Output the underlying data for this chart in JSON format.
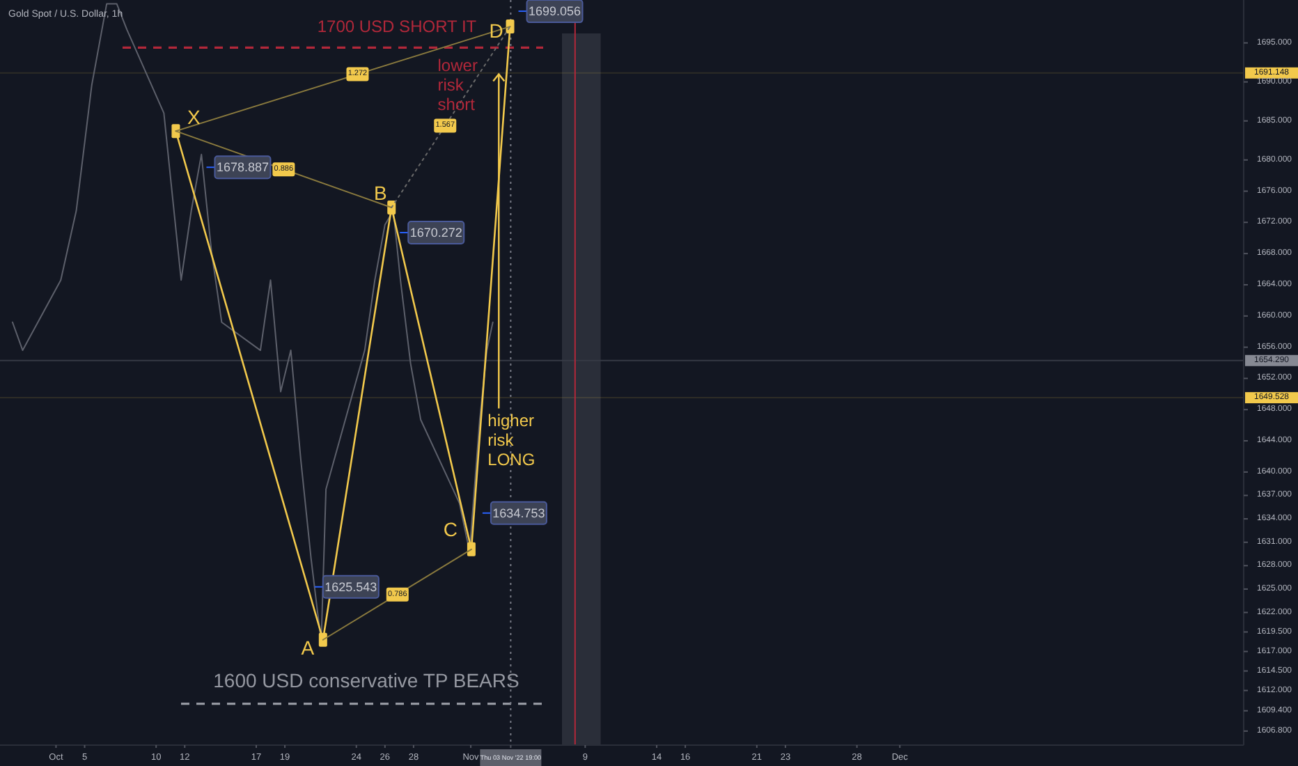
{
  "chart_data": {
    "type": "line",
    "title": "Gold Spot / U.S. Dollar, 1h",
    "xlim": [
      "2022-09-29T02:00",
      "2022-12-25T01:00"
    ],
    "ylim": [
      1605,
      1700.5
    ],
    "xticks": [
      {
        "value": "2022-10-03",
        "label": "Oct"
      },
      {
        "value": "2022-10-05",
        "label": "5"
      },
      {
        "value": "2022-10-10",
        "label": "10"
      },
      {
        "value": "2022-10-12",
        "label": "12"
      },
      {
        "value": "2022-10-17",
        "label": "17"
      },
      {
        "value": "2022-10-19",
        "label": "19"
      },
      {
        "value": "2022-10-24",
        "label": "24"
      },
      {
        "value": "2022-10-26",
        "label": "26"
      },
      {
        "value": "2022-10-28",
        "label": "28"
      },
      {
        "value": "2022-11-01",
        "label": "Nov"
      },
      {
        "value": "2022-11-03T19:00",
        "label": "Thu 03 Nov '22 19:00"
      },
      {
        "value": "2022-11-09",
        "label": "9"
      },
      {
        "value": "2022-11-14",
        "label": "14"
      },
      {
        "value": "2022-11-16",
        "label": "16"
      },
      {
        "value": "2022-11-21",
        "label": "21"
      },
      {
        "value": "2022-11-23",
        "label": "23"
      },
      {
        "value": "2022-11-28",
        "label": "28"
      },
      {
        "value": "2022-12-01",
        "label": "Dec"
      }
    ],
    "yticks": [
      {
        "value": 1695,
        "label": "1695.000"
      },
      {
        "value": 1690,
        "label": "1690.000"
      },
      {
        "value": 1685,
        "label": "1685.000"
      },
      {
        "value": 1680,
        "label": "1680.000"
      },
      {
        "value": 1676,
        "label": "1676.000"
      },
      {
        "value": 1672,
        "label": "1672.000"
      },
      {
        "value": 1668,
        "label": "1668.000"
      },
      {
        "value": 1664,
        "label": "1664.000"
      },
      {
        "value": 1660,
        "label": "1660.000"
      },
      {
        "value": 1656,
        "label": "1656.000"
      },
      {
        "value": 1652,
        "label": "1652.000"
      },
      {
        "value": 1648,
        "label": "1648.000"
      },
      {
        "value": 1644,
        "label": "1644.000"
      },
      {
        "value": 1640,
        "label": "1640.000"
      },
      {
        "value": 1637,
        "label": "1637.000"
      },
      {
        "value": 1634,
        "label": "1634.000"
      },
      {
        "value": 1631,
        "label": "1631.000"
      },
      {
        "value": 1628,
        "label": "1628.000"
      },
      {
        "value": 1625,
        "label": "1625.000"
      },
      {
        "value": 1622,
        "label": "1622.000"
      },
      {
        "value": 1619.5,
        "label": "1619.500"
      },
      {
        "value": 1617,
        "label": "1617.000"
      },
      {
        "value": 1614.5,
        "label": "1614.500"
      },
      {
        "value": 1612,
        "label": "1612.000"
      },
      {
        "value": 1609.4,
        "label": "1609.400"
      },
      {
        "value": 1606.8,
        "label": "1606.800"
      }
    ],
    "marker": "none",
    "series": [
      {
        "color": "#5d606b",
        "x": [
          "2022-09-29T23:00",
          "2022-09-30T16:00",
          "2022-10-03T08:00",
          "2022-10-04T10:00",
          "2022-10-05T12:00",
          "2022-10-06T13:00",
          "2022-10-07T06:00",
          "2022-10-07T23:00",
          "2022-10-10T13:00",
          "2022-10-11T01:00",
          "2022-10-11T18:00",
          "2022-10-12T11:00",
          "2022-10-13T04:00",
          "2022-10-13T21:00",
          "2022-10-14T14:00",
          "2022-10-17T07:00",
          "2022-10-18T00:00",
          "2022-10-18T17:00",
          "2022-10-19T10:00",
          "2022-10-20T03:00",
          "2022-10-20T20:00",
          "2022-10-21T13:00",
          "2022-10-21T21:00",
          "2022-10-24T14:00",
          "2022-10-25T07:00",
          "2022-10-26T00:00",
          "2022-10-26T14:00",
          "2022-10-27T02:00",
          "2022-10-27T19:00",
          "2022-10-28T12:00",
          "2022-10-31T05:00",
          "2022-10-31T22:00",
          "2022-11-01T15:00",
          "2022-11-02T03:00",
          "2022-11-02T13:00"
        ],
        "values": [
          1659.2,
          1655.6,
          1664.6,
          1673.5,
          1689.6,
          1700,
          1700,
          1696.7,
          1686,
          1677.1,
          1664.6,
          1673.5,
          1680.7,
          1668.2,
          1659.2,
          1655.6,
          1664.6,
          1650.3,
          1655.6,
          1641.4,
          1628.9,
          1618.2,
          1637.8,
          1655.6,
          1664.6,
          1671.7,
          1673.5,
          1664.6,
          1653.9,
          1646.7,
          1636,
          1629.8,
          1646.7,
          1655.6,
          1659.2
        ]
      },
      {
        "color": "#f2c94c",
        "x": [
          "2022-10-11T09:00",
          "2022-10-21T16:00",
          "2022-10-26T11:00",
          "2022-11-01T01:00",
          "2022-11-03T18:00"
        ],
        "values": [
          1683.7,
          1618.5,
          1673.9,
          1630.1,
          1697.1
        ],
        "marker": "square"
      },
      {
        "color": "#8a7a3e",
        "x": [
          "2022-10-11T09:00",
          "2022-10-26T11:00"
        ],
        "values": [
          1683.7,
          1673.9
        ]
      },
      {
        "color": "#8a7a3e",
        "x": [
          "2022-10-11T09:00",
          "2022-11-03T18:00"
        ],
        "values": [
          1683.7,
          1697.1
        ]
      },
      {
        "color": "#8a7a3e",
        "x": [
          "2022-10-21T16:00",
          "2022-11-01T01:00"
        ],
        "values": [
          1618.5,
          1630.1
        ]
      },
      {
        "color": "#6a6a6a",
        "x": [
          "2022-10-26T11:00",
          "2022-11-03T18:00"
        ],
        "values": [
          1673.9,
          1697.1
        ],
        "line_style": "dotted"
      }
    ],
    "ref_lines": [
      {
        "axis": "y",
        "value": 1694.4,
        "label": "1700 USD SHORT IT",
        "color": "#b2283a",
        "line_style": "dashed"
      },
      {
        "axis": "y",
        "value": 1610.3,
        "label": "1600 USD conservative TP BEARS",
        "color": "#9598a1",
        "line_style": "dashed"
      },
      {
        "axis": "x",
        "value": "2022-11-03T19:00",
        "color": "#787b86",
        "line_style": "dotted"
      },
      {
        "axis": "y",
        "value": 1654.29,
        "label": "1654.290",
        "color": "#363a45",
        "line_style": "solid"
      },
      {
        "axis": "y",
        "value": 1691.148,
        "label": "1691.148",
        "color": "#f2c94c",
        "line_style": "solid"
      },
      {
        "axis": "y",
        "value": 1649.528,
        "label": "1649.528",
        "color": "#f2c94c",
        "line_style": "solid"
      },
      {
        "axis": "x",
        "value": "2022-11-08T07:00",
        "color": "#b2283a",
        "line_style": "solid"
      }
    ],
    "bands": [
      {
        "axis": "x",
        "from": "2022-11-07T09:00",
        "to": "2022-11-10T02:00",
        "color": "#2a2e39"
      }
    ],
    "annotations": [
      {
        "text": "X",
        "x": "2022-10-11T09:00",
        "y": 1683.7
      },
      {
        "text": "A",
        "x": "2022-10-21T16:00",
        "y": 1618.5
      },
      {
        "text": "B",
        "x": "2022-10-26T11:00",
        "y": 1673.9
      },
      {
        "text": "C",
        "x": "2022-11-01T01:00",
        "y": 1630.1
      },
      {
        "text": "D",
        "x": "2022-11-03T18:00",
        "y": 1697.1
      },
      {
        "text": "0.886",
        "x": "2022-10-18T22:00",
        "y": 1678.8
      },
      {
        "text": "1.272",
        "x": "2022-10-24T02:00",
        "y": 1691.0
      },
      {
        "text": "0.786",
        "x": "2022-10-26T21:00",
        "y": 1624.3
      },
      {
        "text": "1.567",
        "x": "2022-10-30T05:00",
        "y": 1684.4
      },
      "1678.887",
      "1625.543",
      "1670.272",
      "1634.753",
      "1699.056",
      "lower risk short",
      {
        "text": "higher risk LONG",
        "x": "2022-11-02T23:00",
        "y": 1691
      }
    ]
  }
}
